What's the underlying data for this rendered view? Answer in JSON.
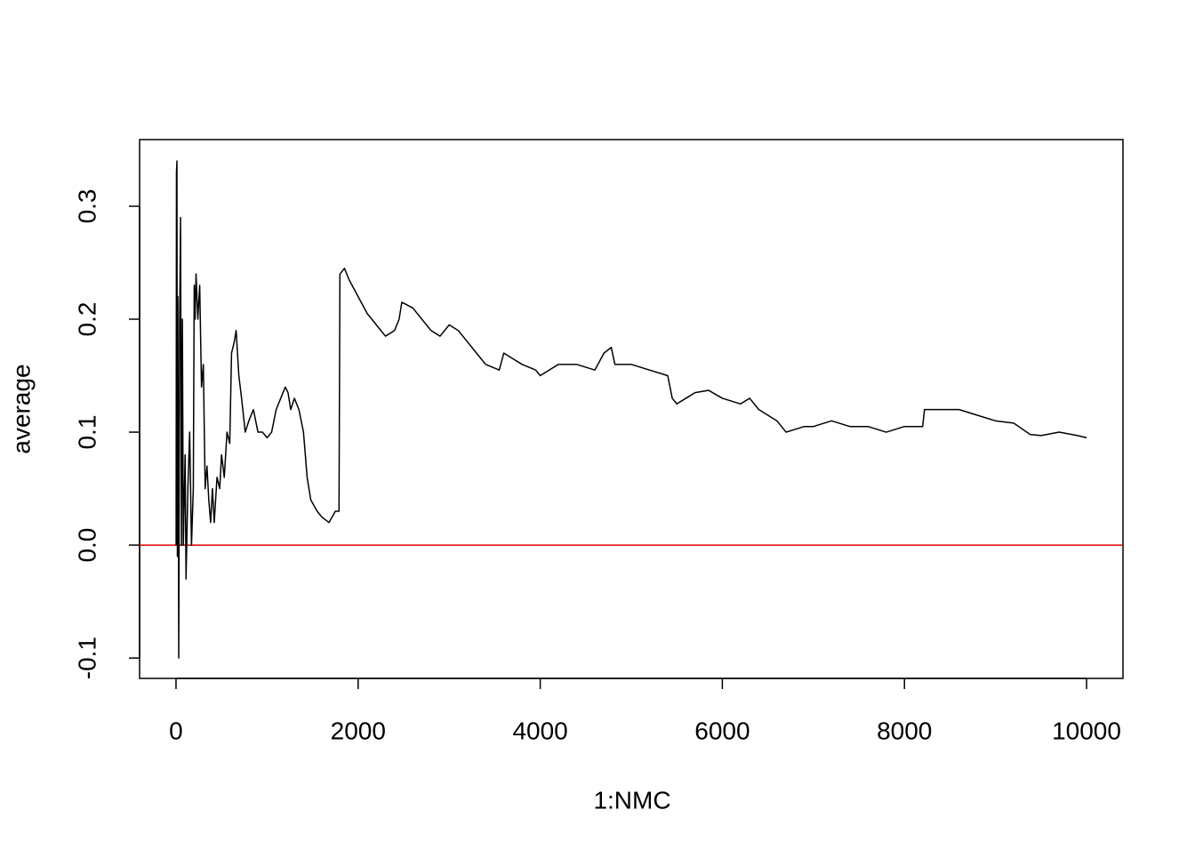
{
  "chart_data": {
    "type": "line",
    "xlabel": "1:NMC",
    "ylabel": "average",
    "x": [
      1,
      5,
      10,
      15,
      20,
      30,
      40,
      50,
      60,
      70,
      80,
      100,
      110,
      130,
      150,
      170,
      190,
      200,
      210,
      220,
      240,
      260,
      280,
      300,
      320,
      340,
      360,
      380,
      400,
      420,
      450,
      480,
      500,
      530,
      560,
      590,
      610,
      640,
      660,
      690,
      720,
      760,
      800,
      850,
      900,
      950,
      1000,
      1050,
      1100,
      1150,
      1200,
      1230,
      1260,
      1300,
      1350,
      1400,
      1440,
      1480,
      1550,
      1600,
      1680,
      1750,
      1790,
      1800,
      1850,
      1900,
      2000,
      2100,
      2200,
      2300,
      2400,
      2450,
      2480,
      2600,
      2700,
      2800,
      2900,
      3000,
      3100,
      3200,
      3300,
      3400,
      3550,
      3600,
      3700,
      3800,
      3950,
      4000,
      4100,
      4200,
      4400,
      4600,
      4700,
      4780,
      4820,
      5000,
      5200,
      5400,
      5450,
      5500,
      5600,
      5700,
      5850,
      6000,
      6200,
      6300,
      6400,
      6500,
      6600,
      6700,
      6900,
      7000,
      7200,
      7400,
      7600,
      7800,
      8000,
      8200,
      8220,
      8400,
      8600,
      8800,
      9000,
      9200,
      9380,
      9500,
      9700,
      9900,
      10000
    ],
    "series": [
      {
        "color": "#000000",
        "values": [
          0.0,
          0.33,
          0.34,
          -0.01,
          0.22,
          -0.1,
          0.2,
          0.29,
          0.0,
          0.2,
          0.0,
          0.08,
          -0.03,
          0.05,
          0.1,
          0.0,
          0.05,
          0.23,
          0.2,
          0.24,
          0.2,
          0.23,
          0.14,
          0.16,
          0.05,
          0.07,
          0.04,
          0.02,
          0.05,
          0.02,
          0.06,
          0.05,
          0.08,
          0.06,
          0.1,
          0.09,
          0.17,
          0.18,
          0.19,
          0.15,
          0.13,
          0.1,
          0.11,
          0.12,
          0.1,
          0.1,
          0.095,
          0.1,
          0.12,
          0.13,
          0.14,
          0.135,
          0.12,
          0.13,
          0.12,
          0.1,
          0.06,
          0.04,
          0.03,
          0.025,
          0.02,
          0.03,
          0.03,
          0.24,
          0.245,
          0.235,
          0.22,
          0.205,
          0.195,
          0.185,
          0.19,
          0.2,
          0.215,
          0.21,
          0.2,
          0.19,
          0.185,
          0.195,
          0.19,
          0.18,
          0.17,
          0.16,
          0.155,
          0.17,
          0.165,
          0.16,
          0.155,
          0.15,
          0.155,
          0.16,
          0.16,
          0.155,
          0.17,
          0.175,
          0.16,
          0.16,
          0.155,
          0.15,
          0.13,
          0.125,
          0.13,
          0.135,
          0.137,
          0.13,
          0.125,
          0.13,
          0.12,
          0.115,
          0.11,
          0.1,
          0.105,
          0.105,
          0.11,
          0.105,
          0.105,
          0.1,
          0.105,
          0.105,
          0.12,
          0.12,
          0.12,
          0.115,
          0.11,
          0.108,
          0.098,
          0.097,
          0.1,
          0.097,
          0.095
        ]
      }
    ],
    "reference_line": {
      "value": 0,
      "color": "#e00000"
    },
    "xlim": [
      -400,
      10400
    ],
    "xticks": [
      0,
      2000,
      4000,
      6000,
      8000,
      10000
    ],
    "ylim": [
      -0.118,
      0.359
    ],
    "yticks": [
      -0.1,
      {
        "value": 0,
        "label": "0.0"
      },
      0.1,
      0.2,
      0.3
    ]
  }
}
